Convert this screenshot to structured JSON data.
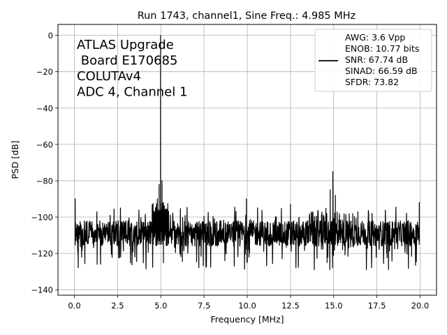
{
  "chart_data": {
    "type": "line",
    "title": "Run 1743, channel1, Sine Freq.: 4.985 MHz",
    "xlabel": "Frequency [MHz]",
    "ylabel": "PSD [dB]",
    "xlim": [
      -0.95,
      20.95
    ],
    "ylim": [
      -143,
      6
    ],
    "xticks": [
      0.0,
      2.5,
      5.0,
      7.5,
      10.0,
      12.5,
      15.0,
      17.5,
      20.0
    ],
    "xtick_labels": [
      "0.0",
      "2.5",
      "5.0",
      "7.5",
      "10.0",
      "12.5",
      "15.0",
      "17.5",
      "20.0"
    ],
    "yticks": [
      0,
      -20,
      -40,
      -60,
      -80,
      -100,
      -120,
      -140
    ],
    "ytick_labels": [
      "0",
      "−20",
      "−40",
      "−60",
      "−80",
      "−100",
      "−120",
      "−140"
    ],
    "grid": true,
    "legend_position": "top-right",
    "line_color": "#000000",
    "annotation_lines": [
      "ATLAS Upgrade",
      " Board E170685",
      "COLUTAv4",
      "ADC 4, Channel 1"
    ],
    "legend_lines": [
      "AWG: 3.6 Vpp",
      "ENOB: 10.77 bits",
      "SNR: 67.74 dB",
      "SINAD: 66.59 dB",
      "SFDR: 73.82"
    ],
    "series": [
      {
        "noise_floor_db": -109,
        "noise_min_db": -136,
        "noise_max_db": -90,
        "peaks": [
          {
            "x": 4.985,
            "y": 0
          },
          {
            "x": 4.9,
            "y": -82
          },
          {
            "x": 5.07,
            "y": -80
          },
          {
            "x": 4.8,
            "y": -90
          },
          {
            "x": 5.15,
            "y": -92
          },
          {
            "x": 14.955,
            "y": -75
          },
          {
            "x": 14.8,
            "y": -85
          },
          {
            "x": 15.1,
            "y": -88
          },
          {
            "x": 0.05,
            "y": -90
          },
          {
            "x": 19.95,
            "y": -92
          },
          {
            "x": 9.95,
            "y": -90
          },
          {
            "x": 12.5,
            "y": -93
          }
        ]
      }
    ]
  }
}
